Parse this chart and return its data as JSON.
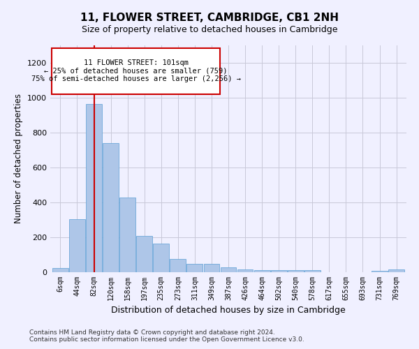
{
  "title": "11, FLOWER STREET, CAMBRIDGE, CB1 2NH",
  "subtitle": "Size of property relative to detached houses in Cambridge",
  "xlabel": "Distribution of detached houses by size in Cambridge",
  "ylabel": "Number of detached properties",
  "bar_color": "#aec6e8",
  "bar_edge_color": "#5a9fd4",
  "annotation_box_color": "#cc0000",
  "vline_color": "#cc0000",
  "vline_x_idx": 2,
  "categories": [
    "6sqm",
    "44sqm",
    "82sqm",
    "120sqm",
    "158sqm",
    "197sqm",
    "235sqm",
    "273sqm",
    "311sqm",
    "349sqm",
    "387sqm",
    "426sqm",
    "464sqm",
    "502sqm",
    "540sqm",
    "578sqm",
    "617sqm",
    "655sqm",
    "693sqm",
    "731sqm",
    "769sqm"
  ],
  "values": [
    25,
    305,
    965,
    740,
    430,
    210,
    165,
    75,
    50,
    50,
    30,
    18,
    13,
    13,
    13,
    13,
    0,
    0,
    0,
    10,
    15
  ],
  "ylim": [
    0,
    1300
  ],
  "yticks": [
    0,
    200,
    400,
    600,
    800,
    1000,
    1200
  ],
  "annotation_text": "11 FLOWER STREET: 101sqm\n← 25% of detached houses are smaller (759)\n75% of semi-detached houses are larger (2,256) →",
  "footnote1": "Contains HM Land Registry data © Crown copyright and database right 2024.",
  "footnote2": "Contains public sector information licensed under the Open Government Licence v3.0.",
  "background_color": "#f0f0ff",
  "plot_bg_color": "#f0f0ff",
  "grid_color": "#c8c8d8"
}
